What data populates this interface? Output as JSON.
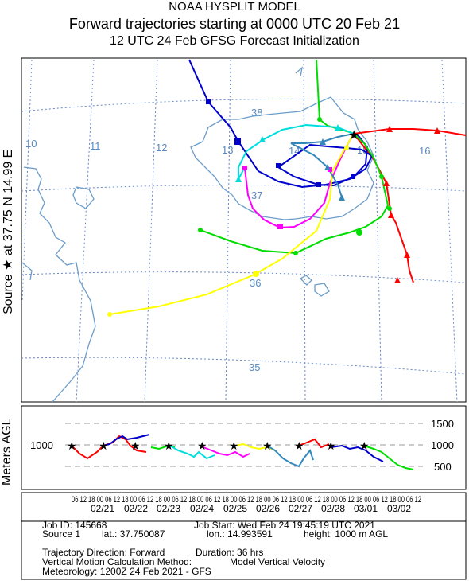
{
  "title": {
    "line1": "NOAA HYSPLIT MODEL",
    "line2": "Forward trajectories starting at 0000 UTC 20 Feb 21",
    "line3": "12 UTC 24 Feb    GFSG  Forecast Initialization"
  },
  "map": {
    "source_label": "Source ★  at   37.75 N   14.99 E",
    "lon_labels": [
      "10",
      "11",
      "12",
      "13",
      "14",
      "15",
      "16"
    ],
    "lat_labels": [
      "38",
      "37",
      "36",
      "35"
    ]
  },
  "vertical": {
    "ylabel": "Meters AGL",
    "left_value": "1000",
    "right_ticks": [
      "1500",
      "1000",
      "500"
    ],
    "hour_row": "06 12 18 00 06 12 18 00 06 12 18 00 06 12 18 00 06 12 18 00 06 12 18 00 06 12 18 00 06 12 18 00 06 12 18 00 06 12 18 00 06 12",
    "dates": [
      "02/21",
      "02/22",
      "02/23",
      "02/24",
      "02/25",
      "02/26",
      "02/27",
      "02/28",
      "03/01",
      "03/02"
    ]
  },
  "info": {
    "job_id": "Job ID: 145668",
    "job_start": "Job Start: Wed Feb 24 19:45:19 UTC 2021",
    "source": "Source 1",
    "lat": "lat.: 37.750087",
    "lon": "lon.: 14.993591",
    "height": "height: 1000 m AGL",
    "direction": "Trajectory Direction: Forward",
    "duration": "Duration: 36 hrs",
    "vmotion": "Vertical Motion Calculation Method:",
    "vmodel": "Model Vertical Velocity",
    "met": "Meteorology: 1200Z 24 Feb 2021 - GFS"
  },
  "colors": {
    "frame": "#000000",
    "grid": "#6688cc",
    "coast": "#6c9cc8",
    "dash": "#999999",
    "series": [
      "#ff0000",
      "#0000cc",
      "#00dd00",
      "#00dddd",
      "#ff00ff",
      "#ffff00",
      "#3388bb"
    ]
  },
  "chart_data": {
    "type": "line",
    "title": "Forward trajectories starting at 0000 UTC 20 Feb 21",
    "ylabel": "Meters AGL",
    "ylim": [
      300,
      1700
    ],
    "source": {
      "lat": 37.75,
      "lon": 14.99,
      "height_m": 1000
    },
    "series": [
      {
        "color": "red",
        "start": "02/21",
        "lon": [
          14.99,
          15.4,
          15.9,
          16.5,
          15.5,
          15.6,
          15.8
        ],
        "lat": [
          37.75,
          37.78,
          37.76,
          37.7,
          37.4,
          37.0,
          36.6
        ],
        "height": [
          1000,
          860,
          760,
          900,
          960,
          980,
          1000
        ]
      },
      {
        "color": "blue",
        "start": "02/22",
        "lon": [
          12.5,
          13.1,
          13.3,
          13.7,
          14.1,
          14.8,
          14.99
        ],
        "lat": [
          38.7,
          38.1,
          37.6,
          37.3,
          37.2,
          37.4,
          37.75
        ],
        "height": [
          1000,
          1100,
          1250,
          1200,
          1050,
          1000,
          1000
        ]
      },
      {
        "color": "green",
        "start": "03/01",
        "lon": [
          14.99,
          14.85,
          14.9,
          15.2,
          15.3,
          14.6,
          14.0,
          13.0,
          12.6
        ],
        "lat": [
          37.75,
          38.3,
          38.5,
          37.5,
          37.2,
          37.0,
          36.7,
          36.8,
          37.0
        ],
        "height": [
          1000,
          900,
          800,
          720,
          650,
          560,
          510,
          500,
          500
        ]
      },
      {
        "color": "cyan",
        "start": "02/23",
        "lon": [
          14.99,
          14.3,
          13.8,
          13.5,
          13.4,
          13.7,
          14.2,
          14.4
        ],
        "lat": [
          37.75,
          37.95,
          37.8,
          37.6,
          37.4,
          37.2,
          37.3,
          37.1
        ],
        "height": [
          1000,
          980,
          900,
          800,
          700,
          650,
          700,
          720
        ]
      },
      {
        "color": "magenta",
        "start": "02/24",
        "lon": [
          14.99,
          14.6,
          14.2,
          13.8,
          13.5,
          13.4,
          13.6,
          14.0
        ],
        "lat": [
          37.75,
          37.4,
          37.1,
          36.9,
          37.0,
          37.4,
          37.65,
          37.55
        ],
        "height": [
          1000,
          950,
          900,
          780,
          700,
          720,
          800,
          820
        ]
      },
      {
        "color": "yellow",
        "start": "02/25",
        "lon": [
          14.99,
          14.8,
          14.6,
          14.3,
          13.7,
          13.0,
          12.6,
          12.0
        ],
        "lat": [
          37.75,
          37.6,
          37.3,
          36.9,
          36.5,
          36.25,
          36.25,
          36.0
        ],
        "height": [
          1000,
          980,
          960,
          900,
          950,
          1000,
          1050,
          1000
        ]
      },
      {
        "color": "teal",
        "start": "02/27",
        "lon": [
          14.99,
          14.4,
          14.2,
          14.35,
          14.6,
          14.5,
          14.6
        ],
        "lat": [
          37.75,
          37.65,
          37.6,
          37.5,
          37.6,
          37.4,
          37.25
        ],
        "height": [
          1000,
          900,
          800,
          650,
          580,
          620,
          700
        ]
      }
    ]
  }
}
